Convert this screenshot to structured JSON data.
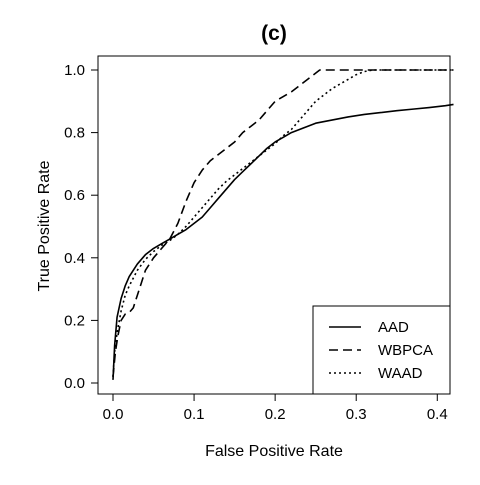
{
  "chart_data": {
    "type": "line",
    "title": "(c)",
    "xlabel": "False Positive Rate",
    "ylabel": "True Positive Rate",
    "xlim": [
      0,
      0.42
    ],
    "ylim": [
      0,
      1.05
    ],
    "x_ticks": [
      0.0,
      0.1,
      0.2,
      0.3,
      0.4
    ],
    "x_tick_labels": [
      "0.0",
      "0.1",
      "0.2",
      "0.3",
      "0.4"
    ],
    "y_ticks": [
      0.0,
      0.2,
      0.4,
      0.6,
      0.8,
      1.0
    ],
    "y_tick_labels": [
      "0.0",
      "0.2",
      "0.4",
      "0.6",
      "0.8",
      "1.0"
    ],
    "grid": false,
    "legend_position": "bottom-right",
    "series": [
      {
        "name": "AAD",
        "line_style": "solid",
        "x": [
          0.0,
          0.002,
          0.005,
          0.01,
          0.015,
          0.02,
          0.03,
          0.04,
          0.05,
          0.06,
          0.07,
          0.08,
          0.09,
          0.1,
          0.11,
          0.12,
          0.13,
          0.14,
          0.15,
          0.16,
          0.17,
          0.18,
          0.19,
          0.2,
          0.21,
          0.22,
          0.23,
          0.24,
          0.25,
          0.27,
          0.29,
          0.31,
          0.33,
          0.35,
          0.37,
          0.39,
          0.41,
          0.42
        ],
        "y": [
          0.01,
          0.12,
          0.21,
          0.27,
          0.31,
          0.34,
          0.38,
          0.41,
          0.43,
          0.445,
          0.46,
          0.475,
          0.49,
          0.51,
          0.53,
          0.56,
          0.59,
          0.62,
          0.65,
          0.675,
          0.7,
          0.725,
          0.75,
          0.77,
          0.785,
          0.8,
          0.81,
          0.82,
          0.83,
          0.84,
          0.85,
          0.858,
          0.864,
          0.87,
          0.875,
          0.88,
          0.886,
          0.89
        ]
      },
      {
        "name": "WBPCA",
        "line_style": "dashed",
        "x": [
          0.0,
          0.003,
          0.006,
          0.01,
          0.015,
          0.02,
          0.025,
          0.03,
          0.035,
          0.04,
          0.05,
          0.06,
          0.07,
          0.08,
          0.09,
          0.1,
          0.11,
          0.12,
          0.13,
          0.14,
          0.15,
          0.16,
          0.17,
          0.18,
          0.19,
          0.2,
          0.21,
          0.22,
          0.23,
          0.24,
          0.25,
          0.255,
          0.27,
          0.3,
          0.35,
          0.4,
          0.42
        ],
        "y": [
          0.02,
          0.1,
          0.15,
          0.2,
          0.22,
          0.225,
          0.24,
          0.28,
          0.32,
          0.36,
          0.4,
          0.43,
          0.46,
          0.51,
          0.58,
          0.64,
          0.68,
          0.71,
          0.73,
          0.75,
          0.77,
          0.8,
          0.82,
          0.84,
          0.87,
          0.9,
          0.915,
          0.93,
          0.95,
          0.97,
          0.99,
          1.0,
          1.0,
          1.0,
          1.0,
          1.0,
          1.0
        ]
      },
      {
        "name": "WAAD",
        "line_style": "dotted",
        "x": [
          0.0,
          0.002,
          0.005,
          0.01,
          0.015,
          0.02,
          0.03,
          0.04,
          0.05,
          0.06,
          0.07,
          0.08,
          0.09,
          0.1,
          0.11,
          0.12,
          0.13,
          0.14,
          0.15,
          0.16,
          0.17,
          0.18,
          0.19,
          0.2,
          0.21,
          0.22,
          0.23,
          0.24,
          0.25,
          0.26,
          0.27,
          0.28,
          0.29,
          0.3,
          0.31,
          0.32,
          0.35,
          0.4,
          0.42
        ],
        "y": [
          0.02,
          0.1,
          0.16,
          0.23,
          0.28,
          0.31,
          0.36,
          0.395,
          0.42,
          0.44,
          0.455,
          0.475,
          0.5,
          0.53,
          0.56,
          0.59,
          0.62,
          0.645,
          0.665,
          0.685,
          0.705,
          0.725,
          0.745,
          0.765,
          0.79,
          0.81,
          0.84,
          0.87,
          0.9,
          0.92,
          0.94,
          0.955,
          0.97,
          0.985,
          0.995,
          1.0,
          1.0,
          1.0,
          1.0
        ]
      }
    ]
  }
}
